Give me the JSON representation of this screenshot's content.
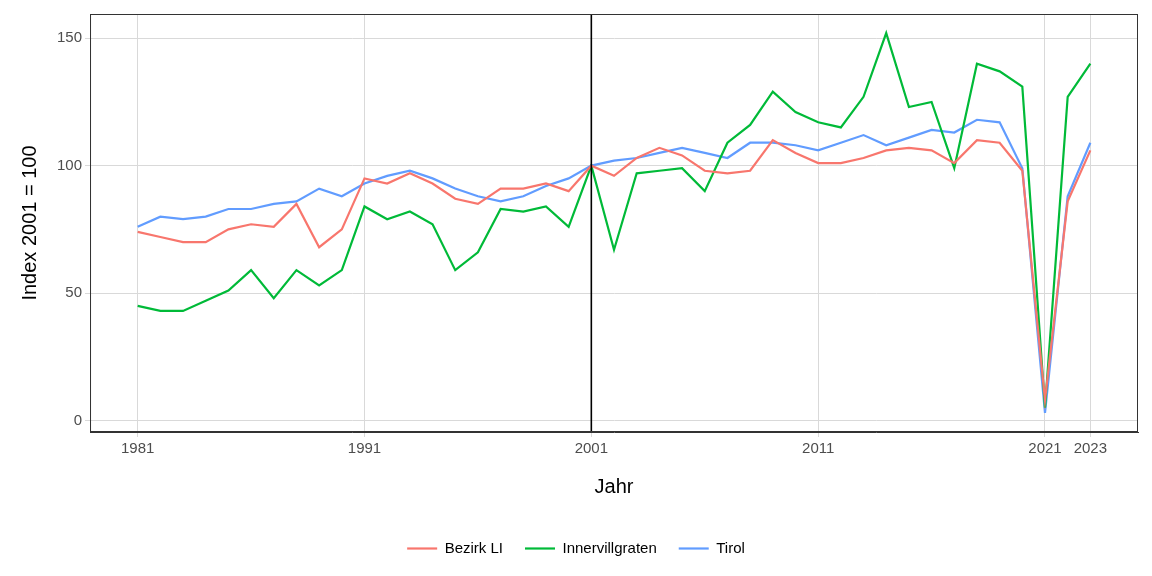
{
  "chart_data": {
    "type": "line",
    "x_label": "Jahr",
    "y_label": "Index 2001 = 100",
    "x": [
      1981,
      1982,
      1983,
      1984,
      1985,
      1986,
      1987,
      1988,
      1989,
      1990,
      1991,
      1992,
      1993,
      1994,
      1995,
      1996,
      1997,
      1998,
      1999,
      2000,
      2001,
      2002,
      2003,
      2004,
      2005,
      2006,
      2007,
      2008,
      2009,
      2010,
      2011,
      2012,
      2013,
      2014,
      2015,
      2016,
      2017,
      2018,
      2019,
      2020,
      2021,
      2022,
      2023
    ],
    "series": [
      {
        "name": "Bezirk LI",
        "color": "#F8766D",
        "marker": "none",
        "line_style": "solid",
        "values": [
          74,
          72,
          70,
          70,
          75,
          77,
          76,
          85,
          68,
          75,
          95,
          93,
          97,
          93,
          87,
          85,
          91,
          91,
          93,
          90,
          100,
          96,
          103,
          107,
          104,
          98,
          97,
          98,
          110,
          105,
          101,
          101,
          103,
          106,
          107,
          106,
          101,
          110,
          109,
          98,
          8,
          86,
          106
        ]
      },
      {
        "name": "Innervillgraten",
        "color": "#00BA38",
        "marker": "none",
        "line_style": "solid",
        "values": [
          45,
          43,
          43,
          47,
          51,
          59,
          48,
          59,
          53,
          59,
          84,
          79,
          82,
          77,
          59,
          66,
          83,
          82,
          84,
          76,
          100,
          67,
          97,
          98,
          99,
          90,
          109,
          116,
          129,
          121,
          117,
          115,
          127,
          152,
          123,
          125,
          99,
          140,
          137,
          131,
          5,
          127,
          140
        ]
      },
      {
        "name": "Tirol",
        "color": "#619CFF",
        "marker": "none",
        "line_style": "solid",
        "values": [
          76,
          80,
          79,
          80,
          83,
          83,
          85,
          86,
          91,
          88,
          93,
          96,
          98,
          95,
          91,
          88,
          86,
          88,
          92,
          95,
          100,
          102,
          103,
          105,
          107,
          105,
          103,
          109,
          109,
          108,
          106,
          109,
          112,
          108,
          111,
          114,
          113,
          118,
          117,
          99,
          3,
          88,
          109
        ]
      }
    ],
    "xlim": [
      1978.9,
      2025.1
    ],
    "xticks": [
      1981,
      1991,
      2001,
      2011,
      2021,
      2023
    ],
    "ylim": [
      -4.5,
      159.5
    ],
    "yticks": [
      0,
      50,
      100,
      150
    ],
    "reference_lines": [
      {
        "axis": "x",
        "value": 2001,
        "color": "#000000"
      }
    ],
    "grid": true,
    "legend": "bottom"
  }
}
